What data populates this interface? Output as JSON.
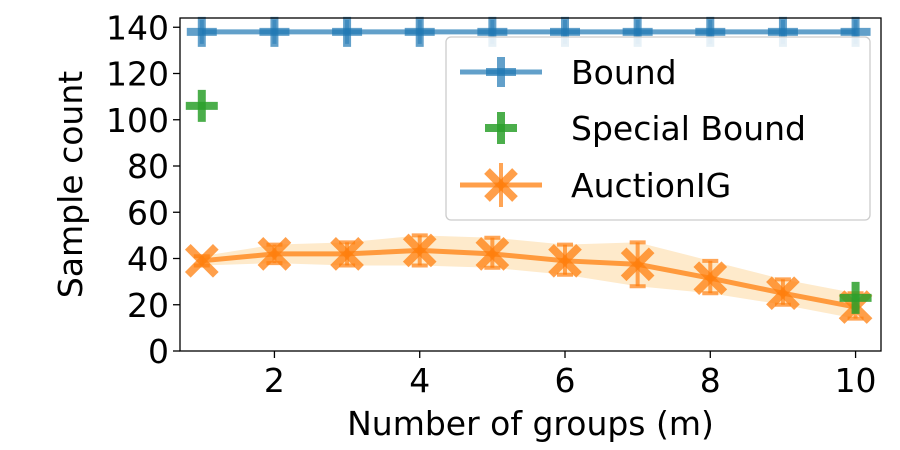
{
  "chart_data": {
    "type": "line",
    "title": "",
    "xlabel": "Number of groups (m)",
    "ylabel": "Sample count",
    "xlim": [
      0.7,
      10.35
    ],
    "ylim": [
      0,
      144
    ],
    "x_ticks": [
      2,
      4,
      6,
      8,
      10
    ],
    "y_ticks": [
      0,
      20,
      40,
      60,
      80,
      100,
      120,
      140
    ],
    "grid": false,
    "legend_position": "top-right",
    "series": [
      {
        "name": "Bound",
        "color": "#1f77b4",
        "marker": "plus",
        "line": true,
        "x": [
          1,
          2,
          3,
          4,
          5,
          6,
          7,
          8,
          9,
          10
        ],
        "y": [
          138,
          138,
          138,
          138,
          138,
          138,
          138,
          138,
          138,
          138
        ]
      },
      {
        "name": "Special Bound",
        "color": "#2ca02c",
        "marker": "plus",
        "line": false,
        "x": [
          1,
          10
        ],
        "y": [
          106,
          23
        ]
      },
      {
        "name": "AuctionIG",
        "color": "#ff7f0e",
        "band_color": "#fdd9a0",
        "marker": "x",
        "line": true,
        "x": [
          1,
          2,
          3,
          4,
          5,
          6,
          7,
          8,
          9,
          10
        ],
        "y": [
          39,
          42,
          42,
          43.5,
          42,
          39,
          37.5,
          31.5,
          25,
          19
        ],
        "lower": [
          37,
          38,
          37,
          37,
          36,
          33,
          28,
          25,
          20,
          14
        ],
        "upper": [
          41,
          46,
          47,
          50,
          49,
          46,
          47,
          39,
          31,
          25
        ]
      }
    ]
  }
}
